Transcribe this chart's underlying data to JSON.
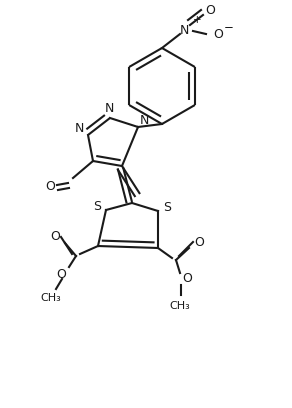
{
  "bg_color": "#ffffff",
  "line_color": "#1a1a1a",
  "lw": 1.5,
  "fs": 8.5,
  "xlim": [
    0,
    2.92
  ],
  "ylim": [
    0,
    4.08
  ]
}
